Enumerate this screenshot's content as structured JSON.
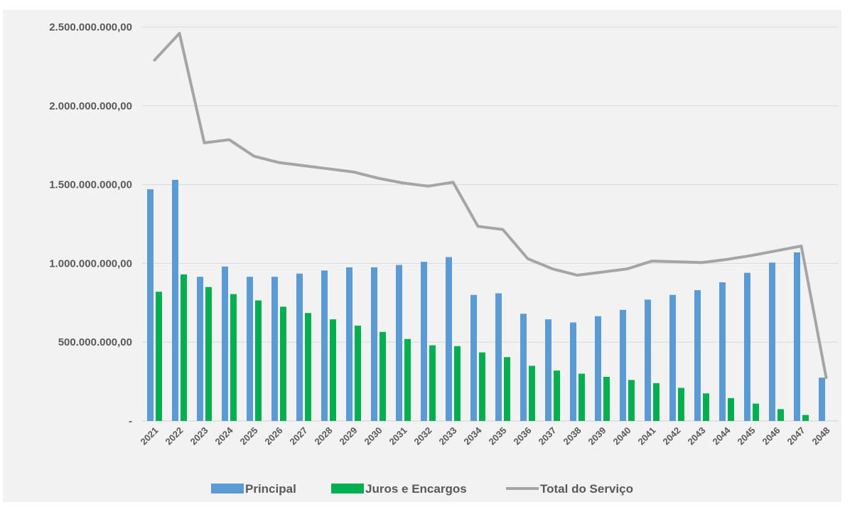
{
  "chart_data": {
    "type": "bar",
    "title": "",
    "xlabel": "",
    "ylabel": "",
    "ylim": [
      0,
      2500000000
    ],
    "y_ticks": [
      "-",
      "500.000.000,00",
      "1.000.000.000,00",
      "1.500.000.000,00",
      "2.000.000.000,00",
      "2.500.000.000,00"
    ],
    "y_tick_values": [
      0,
      500000000,
      1000000000,
      1500000000,
      2000000000,
      2500000000
    ],
    "grid": true,
    "legend_position": "bottom",
    "categories": [
      "2021",
      "2022",
      "2023",
      "2024",
      "2025",
      "2026",
      "2027",
      "2028",
      "2029",
      "2030",
      "2031",
      "2032",
      "2033",
      "2034",
      "2035",
      "2036",
      "2037",
      "2038",
      "2039",
      "2040",
      "2041",
      "2042",
      "2043",
      "2044",
      "2045",
      "2046",
      "2047",
      "2048"
    ],
    "series": [
      {
        "name": "Principal",
        "kind": "bar",
        "color": "#5b9bd5",
        "values": [
          1470000000,
          1530000000,
          915000000,
          980000000,
          915000000,
          915000000,
          935000000,
          955000000,
          975000000,
          975000000,
          990000000,
          1010000000,
          1040000000,
          800000000,
          810000000,
          680000000,
          645000000,
          625000000,
          665000000,
          705000000,
          770000000,
          800000000,
          830000000,
          880000000,
          940000000,
          1005000000,
          1070000000,
          275000000
        ]
      },
      {
        "name": "Juros e Encargos",
        "kind": "bar",
        "color": "#00b050",
        "values": [
          820000000,
          930000000,
          850000000,
          805000000,
          765000000,
          725000000,
          685000000,
          645000000,
          605000000,
          565000000,
          520000000,
          480000000,
          475000000,
          435000000,
          405000000,
          350000000,
          320000000,
          300000000,
          280000000,
          260000000,
          240000000,
          210000000,
          175000000,
          145000000,
          110000000,
          75000000,
          38000000,
          null
        ]
      },
      {
        "name": "Total do Serviço",
        "kind": "line",
        "color": "#a5a5a5",
        "values": [
          2290000000,
          2460000000,
          1765000000,
          1785000000,
          1680000000,
          1640000000,
          1620000000,
          1600000000,
          1580000000,
          1540000000,
          1510000000,
          1490000000,
          1515000000,
          1235000000,
          1215000000,
          1030000000,
          965000000,
          925000000,
          945000000,
          965000000,
          1015000000,
          1010000000,
          1005000000,
          1025000000,
          1050000000,
          1080000000,
          1110000000,
          275000000
        ]
      }
    ]
  }
}
